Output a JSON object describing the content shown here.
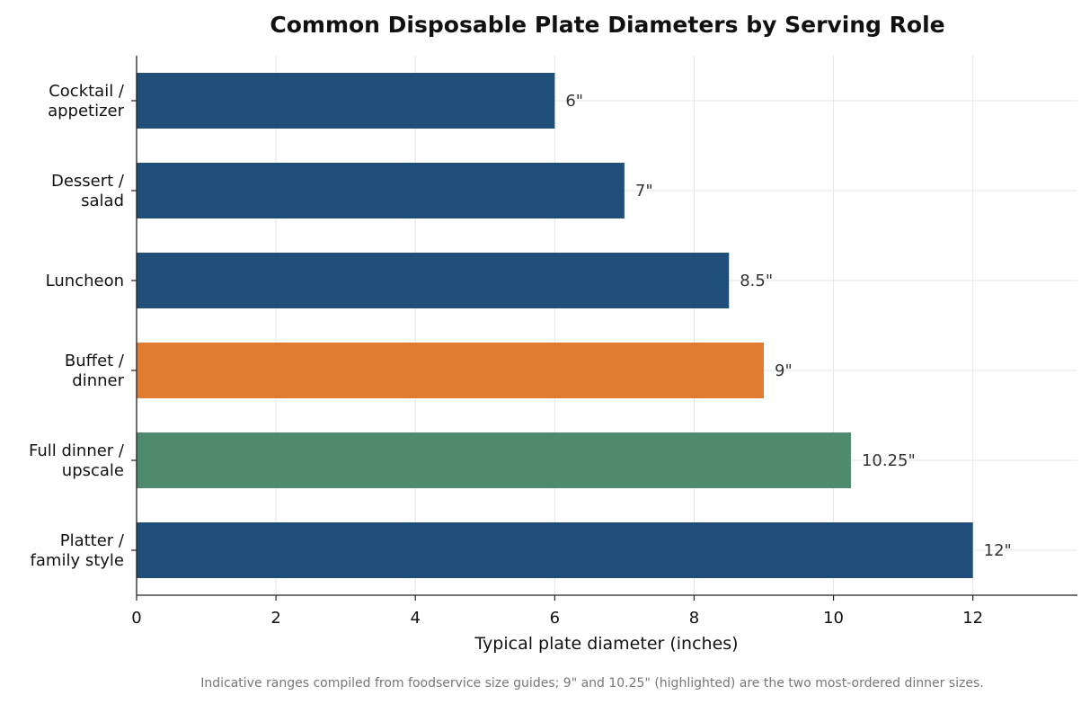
{
  "chart_data": {
    "type": "bar",
    "orientation": "horizontal",
    "title": "Common Disposable Plate Diameters by Serving Role",
    "xlabel": "Typical plate diameter (inches)",
    "ylabel": "",
    "xlim": [
      0,
      13.5
    ],
    "xticks": [
      0,
      2,
      4,
      6,
      8,
      10,
      12
    ],
    "grid": true,
    "categories": [
      [
        "Cocktail /",
        "appetizer"
      ],
      [
        "Dessert /",
        "salad"
      ],
      [
        "Luncheon"
      ],
      [
        "Buffet /",
        "dinner"
      ],
      [
        "Full dinner /",
        "upscale"
      ],
      [
        "Platter /",
        "family style"
      ]
    ],
    "values": [
      6,
      7,
      8.5,
      9,
      10.25,
      12
    ],
    "data_labels": [
      "6\"",
      "7\"",
      "8.5\"",
      "9\"",
      "10.25\"",
      "12\""
    ],
    "colors": [
      "#1f4e79",
      "#1f4e79",
      "#1f4e79",
      "#e07b30",
      "#4e8b6d",
      "#1f4e79"
    ],
    "footnote": "Indicative ranges compiled from foodservice size guides; 9\" and 10.25\" (highlighted) are the two most-ordered dinner sizes."
  }
}
